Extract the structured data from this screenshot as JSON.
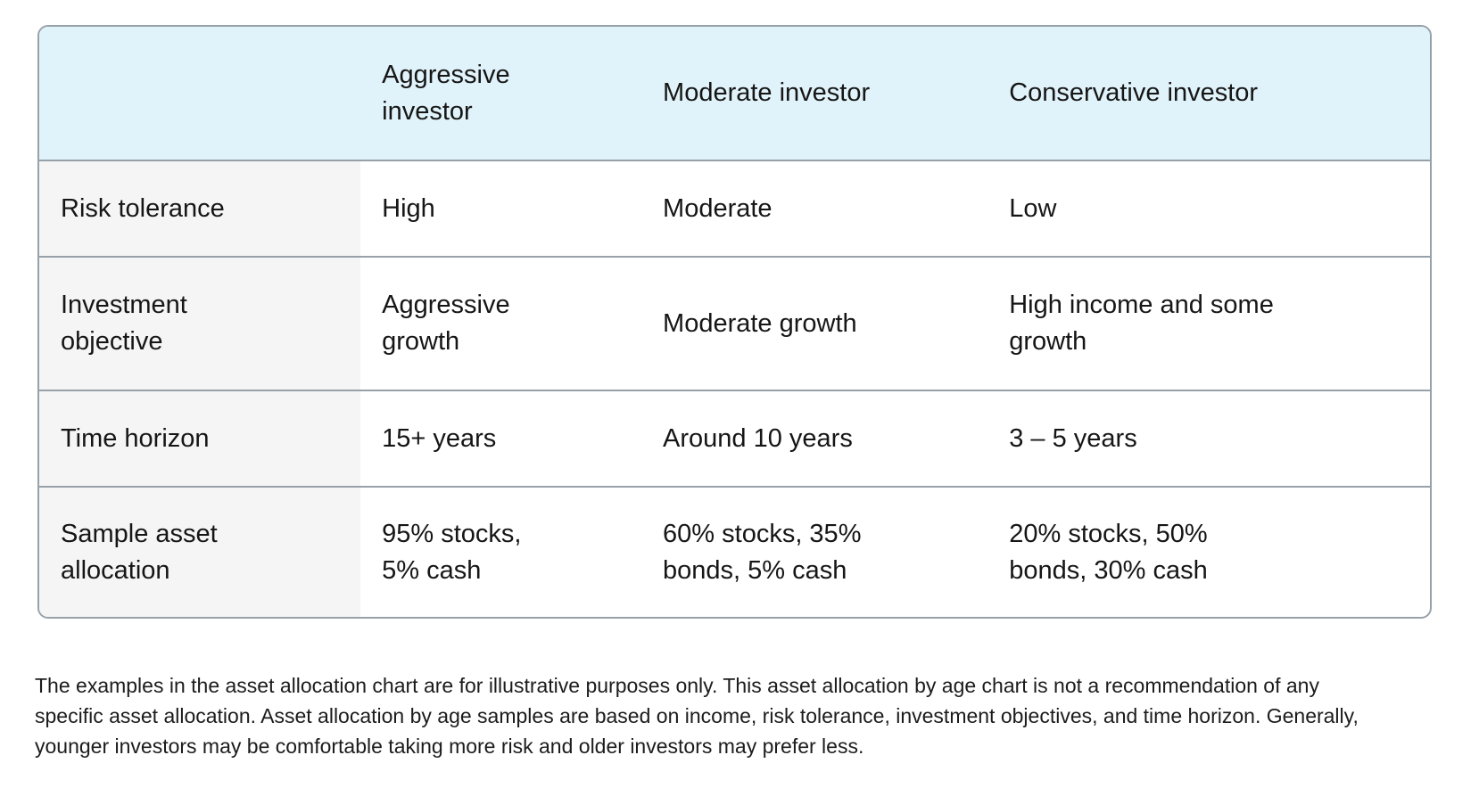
{
  "table": {
    "header": [
      "",
      "Aggressive\ninvestor",
      "Moderate investor",
      "Conservative investor"
    ],
    "rows": [
      {
        "label": "Risk tolerance",
        "cells": [
          "High",
          "Moderate",
          "Low"
        ]
      },
      {
        "label": "Investment\nobjective",
        "cells": [
          "Aggressive\ngrowth",
          "Moderate growth",
          "High income and some\ngrowth"
        ]
      },
      {
        "label": "Time horizon",
        "cells": [
          "15+ years",
          "Around 10 years",
          "3 – 5 years"
        ]
      },
      {
        "label": "Sample asset\nallocation",
        "cells": [
          "95% stocks,\n5% cash",
          "60% stocks, 35%\nbonds, 5% cash",
          "20% stocks, 50%\nbonds, 30% cash"
        ]
      }
    ]
  },
  "disclaimer": "The examples in the asset allocation chart are for illustrative purposes only. This asset allocation by age chart is not a recommendation of any\nspecific asset allocation. Asset allocation by age samples are based on income, risk tolerance, investment objectives, and time horizon. Generally,\nyounger investors may be comfortable taking more risk and older investors may prefer less.",
  "colors": {
    "header_background": "#e1f3fa",
    "label_column_background": "#f5f5f5",
    "border": "#97a1aa",
    "text": "#161616"
  }
}
